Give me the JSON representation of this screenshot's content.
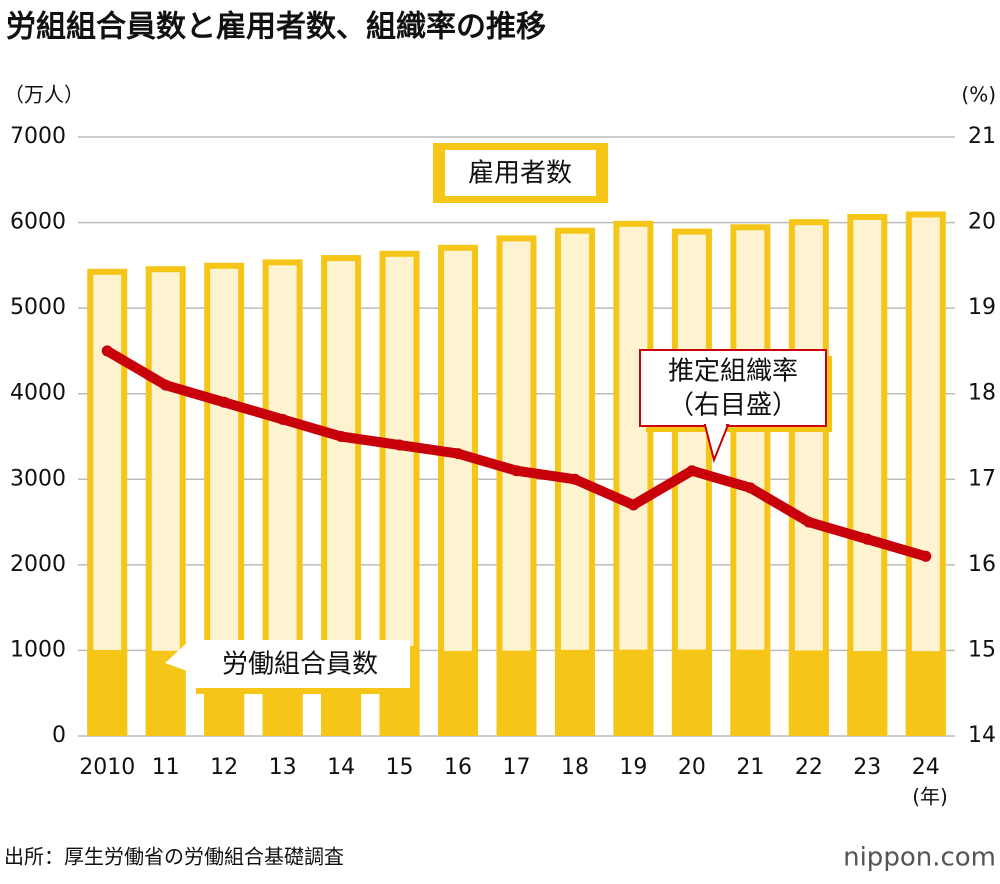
{
  "chart_data": {
    "type": "bar",
    "title": "労組組合員数と雇用者数、組織率の推移",
    "y_label": "（万人）",
    "y2_label": "(%)",
    "x_unit": "(年)",
    "categories": [
      "2010",
      "11",
      "12",
      "13",
      "14",
      "15",
      "16",
      "17",
      "18",
      "19",
      "20",
      "21",
      "22",
      "23",
      "24"
    ],
    "series": [
      {
        "name": "雇用者数",
        "type": "bar",
        "color": "#f5c518",
        "fill": "#fdf3d0",
        "values": [
          5460,
          5490,
          5530,
          5570,
          5620,
          5670,
          5740,
          5850,
          5940,
          6020,
          5930,
          5980,
          6040,
          6100,
          6130
        ]
      },
      {
        "name": "労働組合員数",
        "type": "bar",
        "color": "#f5c518",
        "values": [
          1005,
          996,
          989,
          987,
          985,
          988,
          994,
          998,
          1007,
          1009,
          1011,
          1008,
          999,
          993,
          991
        ]
      },
      {
        "name": "推定組織率",
        "axis_note": "（右目盛）",
        "type": "line",
        "axis": "y2",
        "color": "#c8000a",
        "values": [
          18.5,
          18.1,
          17.9,
          17.7,
          17.5,
          17.4,
          17.3,
          17.1,
          17.0,
          16.7,
          17.1,
          16.9,
          16.5,
          16.3,
          16.1
        ]
      }
    ],
    "ylim": [
      0,
      7000
    ],
    "yticks": [
      0,
      1000,
      2000,
      3000,
      4000,
      5000,
      6000,
      7000
    ],
    "y2lim": [
      14,
      21
    ],
    "y2ticks": [
      14,
      15,
      16,
      17,
      18,
      19,
      20,
      21
    ],
    "grid": true,
    "source": "出所：厚生労働省の労働組合基礎調査",
    "logo": "nippon.com"
  }
}
